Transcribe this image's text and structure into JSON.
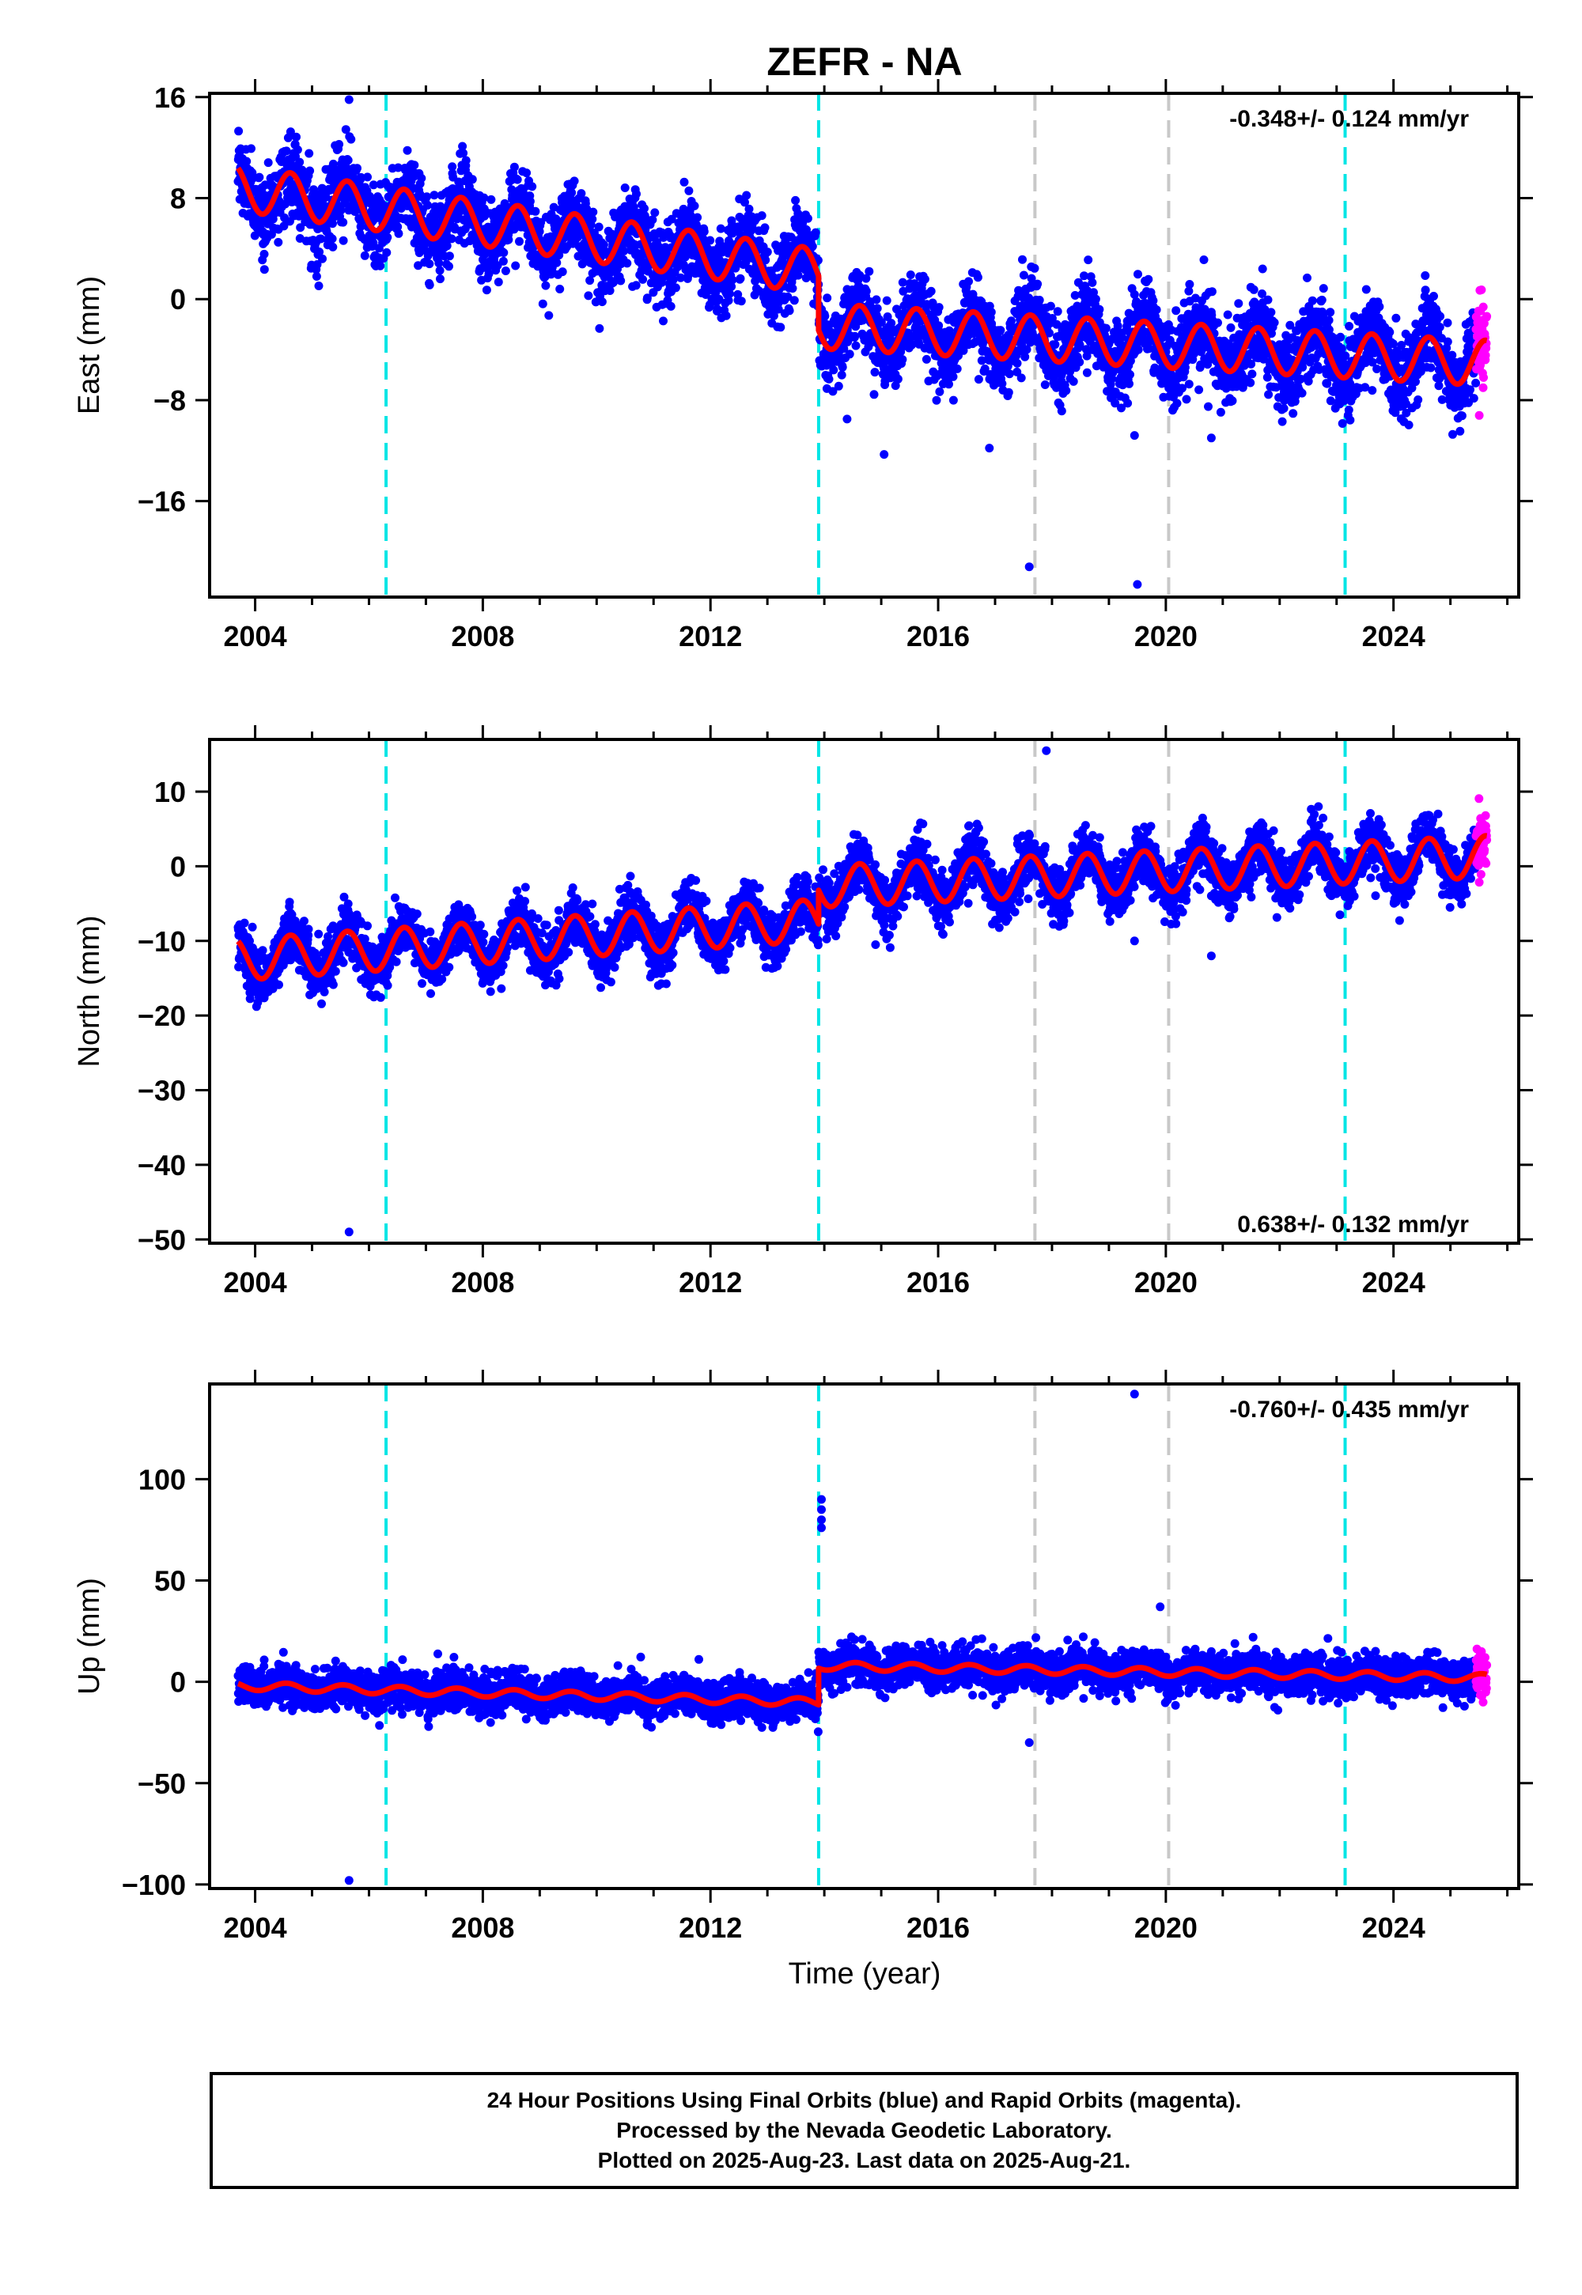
{
  "chart_data": {
    "type": "scatter",
    "title": "ZEFR - NA",
    "xlabel": "Time (year)",
    "x_ticks": [
      2004,
      2008,
      2012,
      2016,
      2020,
      2024
    ],
    "x_tick_labels": [
      "2004",
      "2008",
      "2012",
      "2016",
      "2020",
      "2024"
    ],
    "xlim": [
      2003.2,
      2026.2
    ],
    "legend": {
      "final_orbits": "Final Orbits (blue)",
      "rapid_orbits": "Rapid Orbits (magenta)",
      "model_fit": "red line"
    },
    "colors": {
      "final": "#0000ff",
      "rapid": "#ff00ff",
      "model": "#ff0000",
      "equipment_change": "#00e5e5",
      "earthquake": "#c8c8c8"
    },
    "data_start": 2003.7,
    "data_end": 2025.64,
    "rapid_start": 2025.45,
    "offsets": [
      2006.3,
      2013.9,
      2017.7,
      2020.05,
      2023.15
    ],
    "offset_types": [
      "equipment_change",
      "equipment_change",
      "earthquake",
      "earthquake",
      "equipment_change"
    ],
    "panels": [
      {
        "id": "east",
        "ylabel": "East (mm)",
        "ylim": [
          -23.6,
          16.3
        ],
        "yticks": [
          16,
          8,
          0,
          -8,
          -16
        ],
        "ytick_labels": [
          "16",
          "8",
          "0",
          "−8",
          "−16"
        ],
        "rate": "-0.348+/- 0.124 mm/yr",
        "rate_position": "top-right",
        "model": {
          "y0": 8.8,
          "t0": 2003.7,
          "slope_before": -0.65,
          "jump": -4.3,
          "jump_year": 2013.9,
          "slope_after": -0.25,
          "annual_amplitude": 1.8,
          "peak_phase": 0.62
        },
        "scatter_sigma": 1.6,
        "outliers": [
          [
            2005.65,
            15.8
          ],
          [
            2014.4,
            -9.5
          ],
          [
            2015.05,
            -12.3
          ],
          [
            2016.9,
            -11.8
          ],
          [
            2017.6,
            -21.2
          ],
          [
            2019.45,
            -10.8
          ],
          [
            2019.5,
            -22.6
          ],
          [
            2020.8,
            -11.0
          ]
        ]
      },
      {
        "id": "north",
        "ylabel": "North (mm)",
        "ylim": [
          -50.5,
          17.0
        ],
        "yticks": [
          10,
          0,
          -10,
          -20,
          -30,
          -40,
          -50
        ],
        "ytick_labels": [
          "10",
          "0",
          "−10",
          "−20",
          "−30",
          "−40",
          "−50"
        ],
        "rate": "0.638+/- 0.132 mm/yr",
        "rate_position": "bottom-right",
        "model": {
          "y0": -12.5,
          "t0": 2003.7,
          "slope_before": 0.52,
          "jump": 4.5,
          "jump_year": 2013.9,
          "slope_after": 0.34,
          "annual_amplitude": 2.8,
          "peak_phase": 0.62
        },
        "scatter_sigma": 1.8,
        "outliers": [
          [
            2005.65,
            -49.0
          ],
          [
            2014.9,
            -10.5
          ],
          [
            2017.9,
            15.5
          ],
          [
            2019.45,
            -10.0
          ],
          [
            2020.8,
            -12.0
          ]
        ]
      },
      {
        "id": "up",
        "ylabel": "Up (mm)",
        "ylim": [
          -102.0,
          147.0
        ],
        "yticks": [
          100,
          50,
          0,
          -50,
          -100
        ],
        "ytick_labels": [
          "100",
          "50",
          "0",
          "−50",
          "−100"
        ],
        "rate": "-0.760+/- 0.435 mm/yr",
        "rate_position": "top-right",
        "model": {
          "y0": -2.0,
          "t0": 2003.7,
          "slope_before": -0.8,
          "jump": 18.0,
          "jump_year": 2013.9,
          "slope_after": -0.5,
          "annual_amplitude": 2.0,
          "peak_phase": 0.55
        },
        "scatter_sigma": 5.0,
        "outliers": [
          [
            2005.65,
            -98.0
          ],
          [
            2013.95,
            90.0
          ],
          [
            2013.95,
            85.0
          ],
          [
            2013.95,
            80.0
          ],
          [
            2013.95,
            76.0
          ],
          [
            2019.45,
            142.0
          ],
          [
            2017.6,
            -30.0
          ],
          [
            2019.9,
            37.0
          ]
        ]
      }
    ]
  },
  "footer": {
    "line1": "24 Hour Positions Using Final Orbits (blue) and Rapid Orbits (magenta).",
    "line2": "Processed by the Nevada Geodetic Laboratory.",
    "line3": "Plotted on 2025-Aug-23. Last data on 2025-Aug-21."
  }
}
